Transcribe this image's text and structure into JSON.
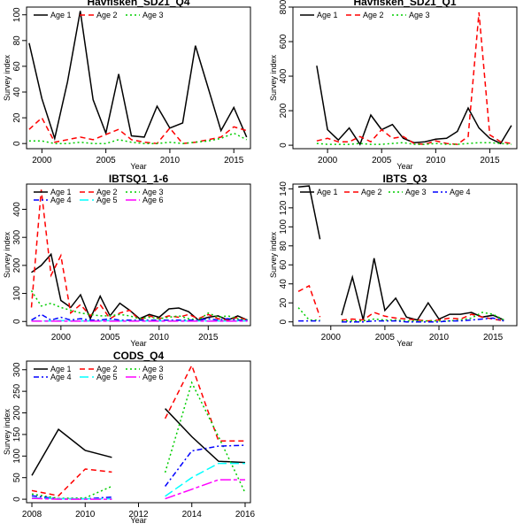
{
  "colors": {
    "Age 1": "#000000",
    "Age 2": "#ff0000",
    "Age 3": "#00cd00",
    "Age 4": "#0000ff",
    "Age 5": "#00ffff",
    "Age 6": "#ff00ff"
  },
  "chart_data": [
    {
      "type": "line",
      "title": "Havfisken_SD21_Q4",
      "xlabel": "Year",
      "ylabel": "Survey index",
      "xlim": [
        1998.8,
        2016.3
      ],
      "ylim": [
        -4,
        106
      ],
      "xticks": [
        2000,
        2005,
        2010,
        2015
      ],
      "yticks": [
        0,
        20,
        40,
        60,
        80,
        100
      ],
      "legend": "top-left",
      "legend_cols": 3,
      "x": [
        1999,
        2000,
        2001,
        2002,
        2003,
        2004,
        2005,
        2006,
        2007,
        2008,
        2009,
        2010,
        2011,
        2012,
        2013,
        2014,
        2015,
        2016
      ],
      "series": [
        {
          "name": "Age 1",
          "values": [
            78,
            35,
            4,
            48,
            103,
            34,
            8,
            54,
            6,
            5,
            29,
            12,
            16,
            76,
            43,
            10,
            28,
            5
          ]
        },
        {
          "name": "Age 2",
          "values": [
            11,
            20,
            1,
            3,
            5,
            3,
            7,
            11,
            3,
            1,
            0,
            12,
            0,
            1,
            3,
            5,
            13,
            10
          ]
        },
        {
          "name": "Age 3",
          "values": [
            2,
            2,
            0,
            0,
            1,
            0,
            0,
            3,
            1,
            0,
            0,
            1,
            0,
            1,
            2,
            4,
            8,
            3
          ]
        }
      ]
    },
    {
      "type": "line",
      "title": "Havfisken_SD21_Q1",
      "xlabel": "Year",
      "ylabel": "Survey index",
      "xlim": [
        1996.8,
        2017.5
      ],
      "ylim": [
        -20,
        800
      ],
      "xticks": [
        2000,
        2005,
        2010,
        2015
      ],
      "yticks": [
        0,
        200,
        400,
        600,
        800
      ],
      "legend": "top-left",
      "legend_cols": 3,
      "x": [
        1999,
        2000,
        2001,
        2002,
        2003,
        2004,
        2005,
        2006,
        2007,
        2008,
        2009,
        2010,
        2011,
        2012,
        2013,
        2014,
        2015,
        2016,
        2017
      ],
      "series": [
        {
          "name": "Age 1",
          "values": [
            460,
            90,
            30,
            100,
            5,
            175,
            90,
            120,
            40,
            15,
            20,
            35,
            40,
            80,
            215,
            100,
            40,
            10,
            115
          ]
        },
        {
          "name": "Age 2",
          "values": [
            25,
            40,
            20,
            20,
            50,
            20,
            90,
            40,
            50,
            10,
            5,
            25,
            10,
            5,
            50,
            770,
            60,
            20,
            10
          ]
        },
        {
          "name": "Age 3",
          "values": [
            10,
            5,
            5,
            5,
            10,
            5,
            5,
            10,
            15,
            5,
            5,
            10,
            5,
            5,
            10,
            15,
            15,
            10,
            5
          ]
        }
      ]
    },
    {
      "type": "line",
      "title": "IBTSQ1_1-6",
      "xlabel": "Year",
      "ylabel": "Survey index",
      "xlim": [
        1996.5,
        2019.3
      ],
      "ylim": [
        -15,
        490
      ],
      "xticks": [
        2000,
        2005,
        2010,
        2015
      ],
      "yticks": [
        0,
        100,
        200,
        300,
        400
      ],
      "legend": "top-left",
      "legend_cols": 3,
      "x": [
        1997,
        1998,
        1999,
        2000,
        2001,
        2002,
        2003,
        2004,
        2005,
        2006,
        2007,
        2008,
        2009,
        2010,
        2011,
        2012,
        2013,
        2014,
        2015,
        2016,
        2017,
        2018,
        2019
      ],
      "series": [
        {
          "name": "Age 1",
          "values": [
            175,
            200,
            240,
            75,
            50,
            95,
            10,
            90,
            20,
            65,
            40,
            10,
            25,
            15,
            45,
            48,
            35,
            5,
            15,
            20,
            5,
            20,
            5
          ]
        },
        {
          "name": "Age 2",
          "values": [
            50,
            470,
            165,
            235,
            30,
            60,
            20,
            60,
            10,
            30,
            40,
            5,
            20,
            10,
            20,
            15,
            25,
            10,
            25,
            10,
            5,
            15,
            5
          ]
        },
        {
          "name": "Age 3",
          "values": [
            110,
            55,
            65,
            50,
            40,
            30,
            25,
            20,
            20,
            25,
            20,
            10,
            15,
            10,
            15,
            20,
            10,
            5,
            30,
            15,
            20,
            10,
            5
          ]
        },
        {
          "name": "Age 4",
          "values": [
            5,
            25,
            5,
            15,
            5,
            10,
            5,
            5,
            10,
            5,
            5,
            5,
            5,
            5,
            5,
            5,
            5,
            5,
            10,
            5,
            10,
            5,
            5
          ]
        },
        {
          "name": "Age 5",
          "values": [
            2,
            2,
            2,
            3,
            2,
            2,
            2,
            2,
            3,
            2,
            2,
            2,
            2,
            2,
            2,
            2,
            2,
            2,
            2,
            2,
            2,
            2,
            2
          ]
        },
        {
          "name": "Age 6",
          "values": [
            1,
            1,
            1,
            1,
            1,
            1,
            1,
            1,
            1,
            1,
            1,
            1,
            1,
            1,
            1,
            1,
            1,
            1,
            1,
            1,
            1,
            1,
            1
          ]
        }
      ]
    },
    {
      "type": "line",
      "title": "IBTS_Q3",
      "xlabel": "Year",
      "ylabel": "Survey index",
      "xlim": [
        1996.5,
        2017.2
      ],
      "ylim": [
        -4,
        145
      ],
      "xticks": [
        2000,
        2005,
        2010,
        2015
      ],
      "yticks": [
        0,
        20,
        40,
        60,
        80,
        100,
        120,
        140
      ],
      "legend": "top-left",
      "legend_cols": 4,
      "x": [
        1997,
        1998,
        1999,
        2000,
        2001,
        2002,
        2003,
        2004,
        2005,
        2006,
        2007,
        2008,
        2009,
        2010,
        2011,
        2012,
        2013,
        2014,
        2015,
        2016
      ],
      "series": [
        {
          "name": "Age 1",
          "values": [
            142,
            143,
            87,
            null,
            7,
            47,
            2,
            67,
            12,
            25,
            5,
            2,
            20,
            3,
            8,
            8,
            10,
            5,
            7,
            2
          ]
        },
        {
          "name": "Age 2",
          "values": [
            32,
            38,
            5,
            null,
            2,
            3,
            2,
            10,
            6,
            4,
            3,
            2,
            1,
            2,
            4,
            3,
            8,
            5,
            3,
            1
          ]
        },
        {
          "name": "Age 3",
          "values": [
            15,
            2,
            2,
            null,
            1,
            1,
            1,
            3,
            2,
            2,
            1,
            1,
            1,
            1,
            1,
            2,
            4,
            10,
            8,
            2
          ]
        },
        {
          "name": "Age 4",
          "values": [
            1,
            1,
            1,
            null,
            0,
            0,
            0,
            1,
            1,
            1,
            0,
            0,
            0,
            0,
            1,
            1,
            2,
            3,
            4,
            1
          ]
        }
      ]
    },
    {
      "type": "line",
      "title": "CODS_Q4",
      "xlabel": "Year",
      "ylabel": "Survey index",
      "xlim": [
        2007.8,
        2016.2
      ],
      "ylim": [
        -8,
        320
      ],
      "xticks": [
        2008,
        2010,
        2012,
        2014,
        2016
      ],
      "yticks": [
        0,
        50,
        100,
        150,
        200,
        250,
        300
      ],
      "legend": "top-left",
      "legend_cols": 3,
      "x": [
        2008,
        2009,
        2010,
        2011,
        2012,
        2013,
        2014,
        2015,
        2016
      ],
      "series": [
        {
          "name": "Age 1",
          "values": [
            55,
            162,
            113,
            97,
            null,
            210,
            145,
            88,
            85
          ]
        },
        {
          "name": "Age 2",
          "values": [
            20,
            8,
            70,
            63,
            null,
            187,
            310,
            135,
            135
          ]
        },
        {
          "name": "Age 3",
          "values": [
            12,
            2,
            3,
            30,
            null,
            62,
            270,
            145,
            15
          ]
        },
        {
          "name": "Age 4",
          "values": [
            8,
            1,
            1,
            5,
            null,
            30,
            112,
            123,
            125
          ]
        },
        {
          "name": "Age 5",
          "values": [
            3,
            1,
            1,
            1,
            null,
            7,
            50,
            83,
            83
          ]
        },
        {
          "name": "Age 6",
          "values": [
            2,
            0,
            0,
            0,
            null,
            1,
            23,
            45,
            45
          ]
        }
      ]
    }
  ]
}
